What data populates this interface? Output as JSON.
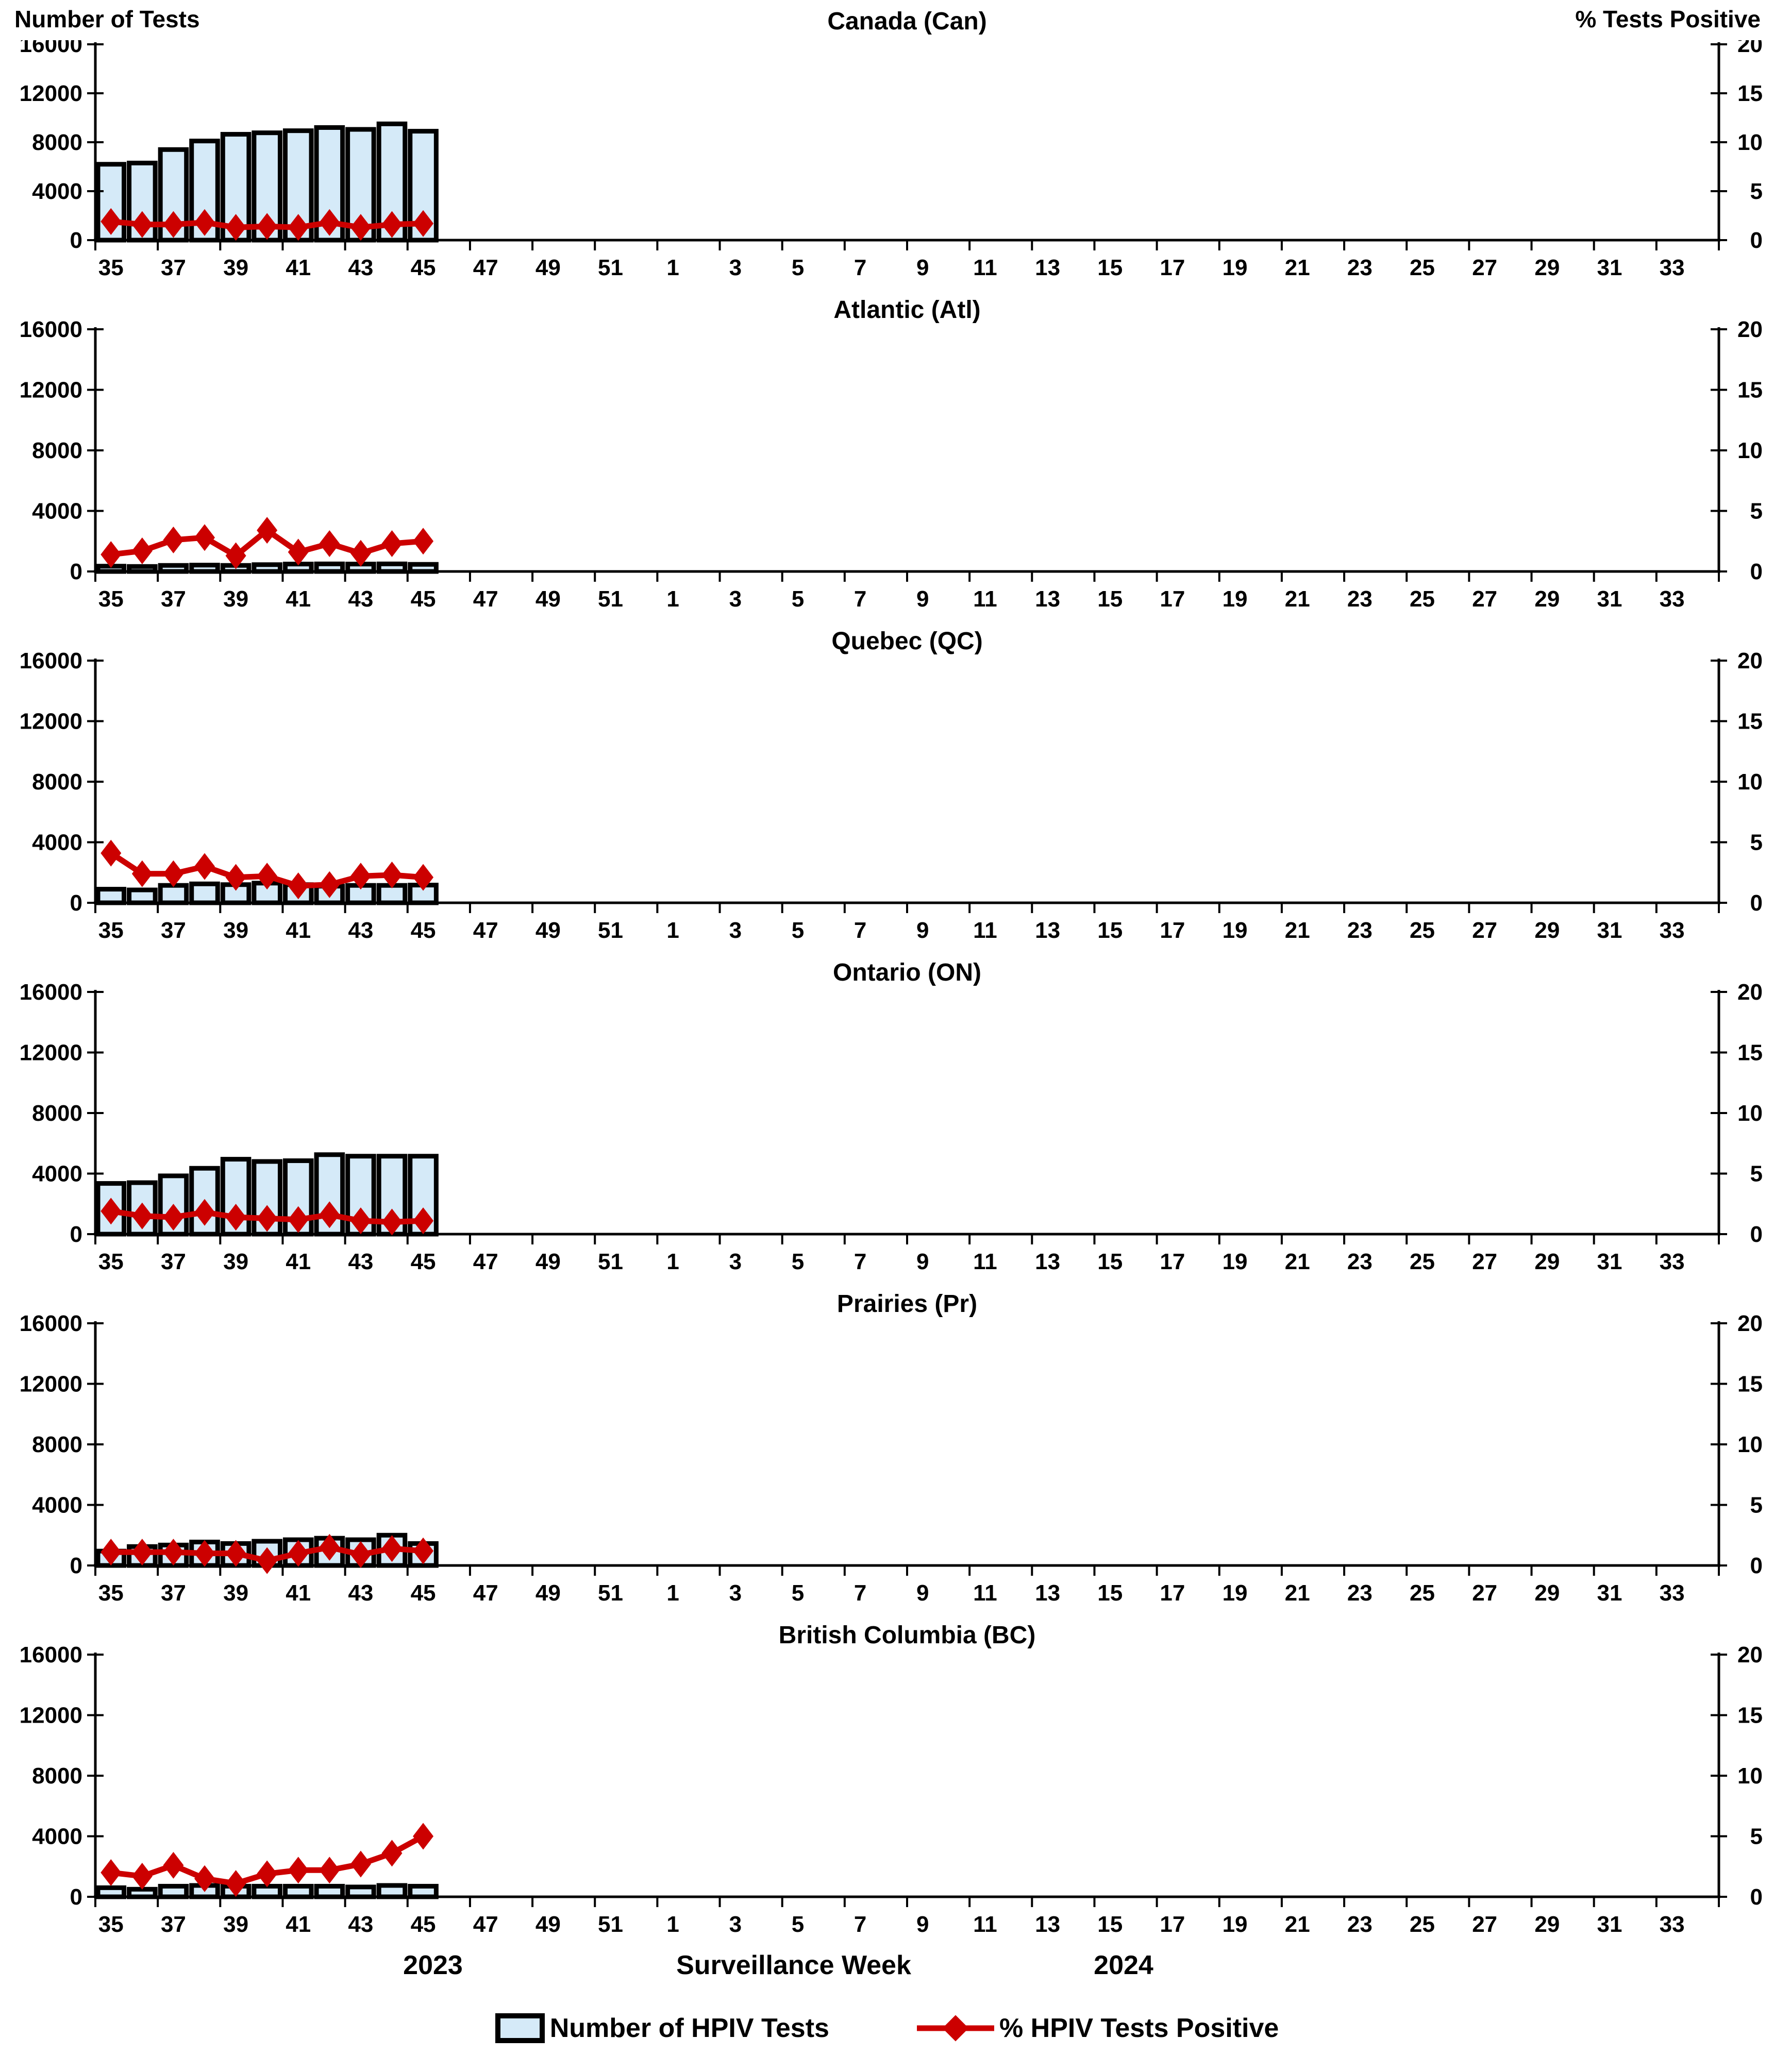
{
  "header": {
    "left_axis_title": "Number of Tests",
    "right_axis_title": "% Tests Positive"
  },
  "footer": {
    "year_left": "2023",
    "xlabel": "Surveillance Week",
    "year_right": "2024"
  },
  "legend": {
    "bar_label": "Number of HPIV Tests",
    "line_label": "% HPIV Tests Positive"
  },
  "colors": {
    "bar_fill": "#D5EAF8",
    "bar_border": "#000000",
    "line_color": "#CC0000",
    "axis_color": "#000000"
  },
  "axes": {
    "left_ticks": [
      0,
      4000,
      8000,
      12000,
      16000
    ],
    "right_ticks": [
      0,
      5,
      10,
      15,
      20
    ],
    "left_max": 16000,
    "right_max": 20,
    "week_labels": [
      "35",
      "37",
      "39",
      "41",
      "43",
      "45",
      "47",
      "49",
      "51",
      "1",
      "3",
      "5",
      "7",
      "9",
      "11",
      "13",
      "15",
      "17",
      "19",
      "21",
      "23",
      "25",
      "27",
      "29",
      "31",
      "33"
    ],
    "total_weeks": 52
  },
  "chart_data": [
    {
      "type": "bar+line",
      "title": "Canada (Can)",
      "weeks": [
        35,
        36,
        37,
        38,
        39,
        40,
        41,
        42,
        43,
        44,
        45
      ],
      "tests": [
        6200,
        6300,
        7400,
        8100,
        8650,
        8770,
        8940,
        9200,
        9050,
        9500,
        8900
      ],
      "pct_positive": [
        1.9,
        1.6,
        1.6,
        1.8,
        1.3,
        1.4,
        1.3,
        1.8,
        1.3,
        1.6,
        1.7
      ],
      "ylim_left": [
        0,
        16000
      ],
      "ylim_right": [
        0,
        20
      ]
    },
    {
      "type": "bar+line",
      "title": "Atlantic (Atl)",
      "weeks": [
        35,
        36,
        37,
        38,
        39,
        40,
        41,
        42,
        43,
        44,
        45
      ],
      "tests": [
        350,
        330,
        400,
        420,
        400,
        450,
        490,
        500,
        490,
        500,
        470
      ],
      "pct_positive": [
        1.4,
        1.7,
        2.6,
        2.8,
        1.3,
        3.4,
        1.6,
        2.3,
        1.5,
        2.3,
        2.5
      ],
      "ylim_left": [
        0,
        16000
      ],
      "ylim_right": [
        0,
        20
      ]
    },
    {
      "type": "bar+line",
      "title": "Quebec (QC)",
      "weeks": [
        35,
        36,
        37,
        38,
        39,
        40,
        41,
        42,
        43,
        44,
        45
      ],
      "tests": [
        900,
        850,
        1150,
        1250,
        1200,
        1300,
        1200,
        1100,
        1150,
        1150,
        1170
      ],
      "pct_positive": [
        4.1,
        2.4,
        2.4,
        3.0,
        2.1,
        2.2,
        1.4,
        1.5,
        2.2,
        2.3,
        2.1
      ],
      "ylim_left": [
        0,
        16000
      ],
      "ylim_right": [
        0,
        20
      ]
    },
    {
      "type": "bar+line",
      "title": "Ontario (ON)",
      "weeks": [
        35,
        36,
        37,
        38,
        39,
        40,
        41,
        42,
        43,
        44,
        45
      ],
      "tests": [
        3350,
        3400,
        3850,
        4350,
        4950,
        4800,
        4850,
        5250,
        5150,
        5150,
        5150
      ],
      "pct_positive": [
        1.9,
        1.5,
        1.4,
        1.8,
        1.4,
        1.3,
        1.2,
        1.6,
        1.1,
        1.0,
        1.1
      ],
      "ylim_left": [
        0,
        16000
      ],
      "ylim_right": [
        0,
        20
      ]
    },
    {
      "type": "bar+line",
      "title": "Prairies (Pr)",
      "weeks": [
        35,
        36,
        37,
        38,
        39,
        40,
        41,
        42,
        43,
        44,
        45
      ],
      "tests": [
        950,
        1250,
        1350,
        1550,
        1450,
        1600,
        1700,
        1800,
        1700,
        2000,
        1450
      ],
      "pct_positive": [
        1.1,
        1.1,
        1.1,
        1.0,
        1.0,
        0.4,
        1.0,
        1.5,
        0.9,
        1.4,
        1.2
      ],
      "ylim_left": [
        0,
        16000
      ],
      "ylim_right": [
        0,
        20
      ]
    },
    {
      "type": "bar+line",
      "title": "British Columbia (BC)",
      "weeks": [
        35,
        36,
        37,
        38,
        39,
        40,
        41,
        42,
        43,
        44,
        45
      ],
      "tests": [
        600,
        500,
        700,
        750,
        700,
        700,
        700,
        700,
        650,
        750,
        700
      ],
      "pct_positive": [
        2.0,
        1.7,
        2.6,
        1.5,
        1.1,
        1.9,
        2.2,
        2.2,
        2.7,
        3.6,
        5.0
      ],
      "ylim_left": [
        0,
        16000
      ],
      "ylim_right": [
        0,
        20
      ]
    }
  ]
}
